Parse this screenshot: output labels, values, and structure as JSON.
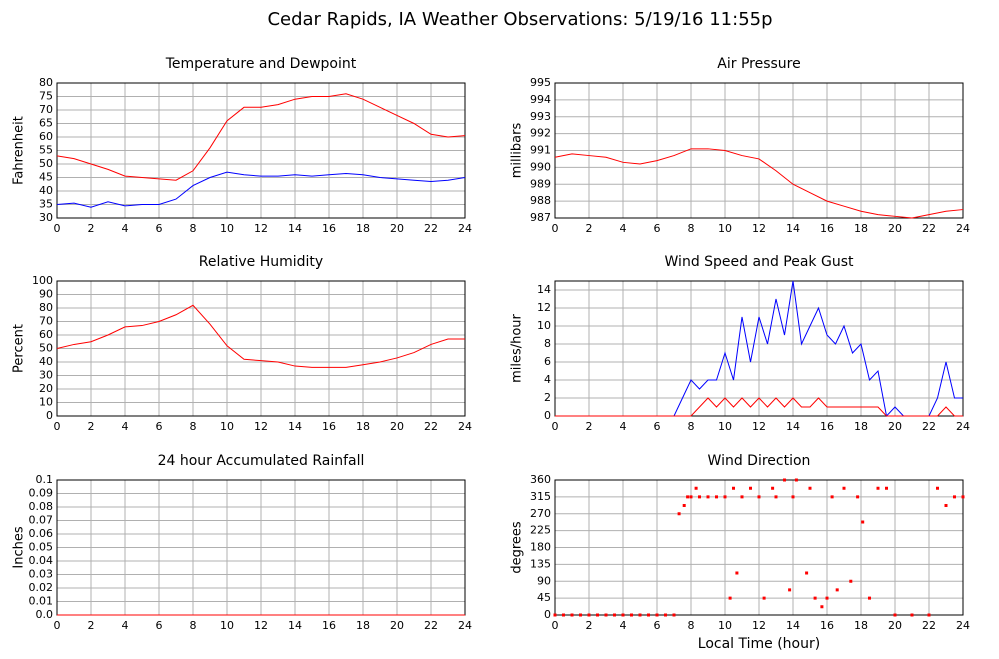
{
  "title": "Cedar Rapids, IA Weather Observations: 5/19/16 11:55p",
  "chart_data": [
    {
      "type": "line",
      "title": "Temperature and Dewpoint",
      "ylabel": "Fahrenheit",
      "x": [
        0,
        1,
        2,
        3,
        4,
        5,
        6,
        7,
        8,
        9,
        10,
        11,
        12,
        13,
        14,
        15,
        16,
        17,
        18,
        19,
        20,
        21,
        22,
        23,
        24
      ],
      "series": [
        {
          "color": "#ff0000",
          "values": [
            53,
            52,
            50,
            48,
            45.5,
            45,
            44.5,
            44,
            47.5,
            56,
            66,
            71,
            71,
            72,
            74,
            75,
            75,
            76,
            74,
            71,
            68,
            65,
            61,
            60,
            60.5
          ]
        },
        {
          "color": "#0000ff",
          "values": [
            35,
            35.5,
            34,
            36,
            34.5,
            35,
            35,
            37,
            42,
            45,
            47,
            46,
            45.5,
            45.5,
            46,
            45.5,
            46,
            46.5,
            46,
            45,
            44.5,
            44,
            43.5,
            44,
            45
          ]
        }
      ],
      "xlim": [
        0,
        24
      ],
      "xticks": [
        0,
        2,
        4,
        6,
        8,
        10,
        12,
        14,
        16,
        18,
        20,
        22,
        24
      ],
      "ylim": [
        30,
        80
      ],
      "yticks": [
        30,
        35,
        40,
        45,
        50,
        55,
        60,
        65,
        70,
        75,
        80
      ],
      "grid": true
    },
    {
      "type": "line",
      "title": "Air Pressure",
      "ylabel": "millibars",
      "x": [
        0,
        1,
        2,
        3,
        4,
        5,
        6,
        7,
        8,
        9,
        10,
        11,
        12,
        13,
        14,
        15,
        16,
        17,
        18,
        19,
        20,
        21,
        22,
        23,
        24
      ],
      "series": [
        {
          "color": "#ff0000",
          "values": [
            990.6,
            990.8,
            990.7,
            990.6,
            990.3,
            990.2,
            990.4,
            990.7,
            991.1,
            991.1,
            991,
            990.7,
            990.5,
            989.8,
            989,
            988.5,
            988,
            987.7,
            987.4,
            987.2,
            987.1,
            987,
            987.2,
            987.4,
            987.5
          ]
        }
      ],
      "xlim": [
        0,
        24
      ],
      "xticks": [
        0,
        2,
        4,
        6,
        8,
        10,
        12,
        14,
        16,
        18,
        20,
        22,
        24
      ],
      "ylim": [
        987,
        995
      ],
      "yticks": [
        987,
        988,
        989,
        990,
        991,
        992,
        993,
        994,
        995
      ],
      "grid": true
    },
    {
      "type": "line",
      "title": "Relative Humidity",
      "ylabel": "Percent",
      "x": [
        0,
        1,
        2,
        3,
        4,
        5,
        6,
        7,
        8,
        9,
        10,
        11,
        12,
        13,
        14,
        15,
        16,
        17,
        18,
        19,
        20,
        21,
        22,
        23,
        24
      ],
      "series": [
        {
          "color": "#ff0000",
          "values": [
            50,
            53,
            55,
            60,
            66,
            67,
            70,
            75,
            82,
            68,
            52,
            42,
            41,
            40,
            37,
            36,
            36,
            36,
            38,
            40,
            43,
            47,
            53,
            57,
            57
          ]
        }
      ],
      "xlim": [
        0,
        24
      ],
      "xticks": [
        0,
        2,
        4,
        6,
        8,
        10,
        12,
        14,
        16,
        18,
        20,
        22,
        24
      ],
      "ylim": [
        0,
        100
      ],
      "yticks": [
        0,
        10,
        20,
        30,
        40,
        50,
        60,
        70,
        80,
        90,
        100
      ],
      "grid": true
    },
    {
      "type": "line",
      "title": "Wind Speed and Peak Gust",
      "ylabel": "miles/hour",
      "x": [
        0,
        0.5,
        1,
        1.5,
        2,
        2.5,
        3,
        3.5,
        4,
        4.5,
        5,
        5.5,
        6,
        6.5,
        7,
        7.5,
        8,
        8.5,
        9,
        9.5,
        10,
        10.5,
        11,
        11.5,
        12,
        12.5,
        13,
        13.5,
        14,
        14.5,
        15,
        15.5,
        16,
        16.5,
        17,
        17.5,
        18,
        18.5,
        19,
        19.5,
        20,
        20.5,
        21,
        21.5,
        22,
        22.5,
        23,
        23.5,
        24
      ],
      "series": [
        {
          "color": "#0000ff",
          "values": [
            0,
            0,
            0,
            0,
            0,
            0,
            0,
            0,
            0,
            0,
            0,
            0,
            0,
            0,
            0,
            2,
            4,
            3,
            4,
            4,
            7,
            4,
            11,
            6,
            11,
            8,
            13,
            9,
            15,
            8,
            10,
            12,
            9,
            8,
            10,
            7,
            8,
            4,
            5,
            0,
            1,
            0,
            0,
            0,
            0,
            2,
            6,
            2,
            2
          ]
        },
        {
          "color": "#ff0000",
          "values": [
            0,
            0,
            0,
            0,
            0,
            0,
            0,
            0,
            0,
            0,
            0,
            0,
            0,
            0,
            0,
            0,
            0,
            1,
            2,
            1,
            2,
            1,
            2,
            1,
            2,
            1,
            2,
            1,
            2,
            1,
            1,
            2,
            1,
            1,
            1,
            1,
            1,
            1,
            1,
            0,
            0,
            0,
            0,
            0,
            0,
            0,
            1,
            0,
            0
          ]
        }
      ],
      "xlim": [
        0,
        24
      ],
      "xticks": [
        0,
        2,
        4,
        6,
        8,
        10,
        12,
        14,
        16,
        18,
        20,
        22,
        24
      ],
      "ylim": [
        0,
        15
      ],
      "yticks": [
        0,
        2,
        4,
        6,
        8,
        10,
        12,
        14
      ],
      "grid": true
    },
    {
      "type": "line",
      "title": "24 hour Accumulated Rainfall",
      "ylabel": "Inches",
      "x": [
        0,
        1,
        2,
        3,
        4,
        5,
        6,
        7,
        8,
        9,
        10,
        11,
        12,
        13,
        14,
        15,
        16,
        17,
        18,
        19,
        20,
        21,
        22,
        23,
        24
      ],
      "series": [
        {
          "color": "#ff0000",
          "values": [
            0,
            0,
            0,
            0,
            0,
            0,
            0,
            0,
            0,
            0,
            0,
            0,
            0,
            0,
            0,
            0,
            0,
            0,
            0,
            0,
            0,
            0,
            0,
            0,
            0
          ]
        }
      ],
      "xlim": [
        0,
        24
      ],
      "xticks": [
        0,
        2,
        4,
        6,
        8,
        10,
        12,
        14,
        16,
        18,
        20,
        22,
        24
      ],
      "ylim": [
        0,
        0.1
      ],
      "yticks": [
        {
          "value": 0,
          "label": "0.0"
        },
        0.01,
        0.02,
        0.03,
        0.04,
        0.05,
        0.06,
        0.07,
        0.08,
        0.09,
        0.1
      ],
      "grid": true
    },
    {
      "type": "scatter",
      "title": "Wind Direction",
      "ylabel": "degrees",
      "xlabel": "Local Time (hour)",
      "color": "#ff0000",
      "x": [
        0,
        0.5,
        1,
        1.5,
        2,
        2.5,
        3,
        3.5,
        4,
        4.5,
        5,
        5.5,
        6,
        6.5,
        7,
        7.3,
        7.6,
        7.8,
        8,
        8.3,
        8.5,
        9,
        9.5,
        10,
        10.3,
        10.5,
        10.7,
        11,
        11.5,
        12,
        12.3,
        12.8,
        13,
        13.5,
        13.8,
        14,
        14.2,
        14.8,
        15,
        15.3,
        15.7,
        16,
        16.3,
        16.6,
        17,
        17.4,
        17.8,
        18.1,
        18.5,
        19,
        19.5,
        20,
        21,
        22,
        22.5,
        23,
        23.5,
        24
      ],
      "values": [
        0,
        0,
        0,
        0,
        0,
        0,
        0,
        0,
        0,
        0,
        0,
        0,
        0,
        0,
        0,
        270,
        292,
        315,
        315,
        338,
        315,
        315,
        315,
        315,
        45,
        338,
        112,
        315,
        338,
        315,
        45,
        338,
        315,
        360,
        67,
        315,
        360,
        112,
        338,
        45,
        22,
        45,
        315,
        67,
        338,
        90,
        315,
        248,
        45,
        338,
        338,
        0,
        0,
        0,
        338,
        292,
        315,
        315
      ],
      "xlim": [
        0,
        24
      ],
      "xticks": [
        0,
        2,
        4,
        6,
        8,
        10,
        12,
        14,
        16,
        18,
        20,
        22,
        24
      ],
      "ylim": [
        0,
        360
      ],
      "yticks": [
        0,
        45,
        90,
        135,
        180,
        225,
        270,
        315,
        360
      ],
      "grid": true
    }
  ]
}
